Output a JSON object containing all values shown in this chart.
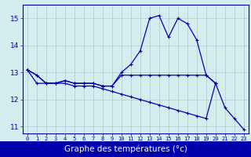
{
  "hours": [
    0,
    1,
    2,
    3,
    4,
    5,
    6,
    7,
    8,
    9,
    10,
    11,
    12,
    13,
    14,
    15,
    16,
    17,
    18,
    19,
    20,
    21,
    22,
    23
  ],
  "temp1": [
    13.1,
    12.9,
    12.6,
    12.6,
    12.7,
    12.6,
    12.6,
    12.6,
    12.5,
    12.5,
    13.0,
    13.3,
    13.8,
    15.0,
    15.1,
    14.3,
    15.0,
    14.8,
    14.2,
    12.9,
    12.6,
    11.7,
    11.3,
    10.9
  ],
  "temp2": [
    13.1,
    12.9,
    12.6,
    12.6,
    12.7,
    12.6,
    12.6,
    12.6,
    12.5,
    12.5,
    12.9,
    12.9,
    12.9,
    12.9,
    12.9,
    12.9,
    12.9,
    12.9,
    12.9,
    12.9,
    12.6,
    null,
    null,
    null
  ],
  "temp3": [
    13.1,
    12.6,
    12.6,
    12.6,
    12.6,
    12.5,
    12.5,
    12.5,
    12.4,
    12.3,
    12.2,
    12.1,
    12.0,
    11.9,
    11.8,
    11.7,
    11.6,
    11.5,
    11.4,
    11.3,
    12.6,
    null,
    null,
    null
  ],
  "ylim": [
    10.75,
    15.5
  ],
  "yticks": [
    11,
    12,
    13,
    14,
    15
  ],
  "xticks": [
    0,
    1,
    2,
    3,
    4,
    5,
    6,
    7,
    8,
    9,
    10,
    11,
    12,
    13,
    14,
    15,
    16,
    17,
    18,
    19,
    20,
    21,
    22,
    23
  ],
  "xlabel": "Graphe des températures (°c)",
  "line_color": "#0000bb",
  "bg_color": "#d4eef0",
  "grid_color": "#aaccd0",
  "label_bg": "#0000aa",
  "label_fg": "#ffffff",
  "spine_color": "#0000bb"
}
